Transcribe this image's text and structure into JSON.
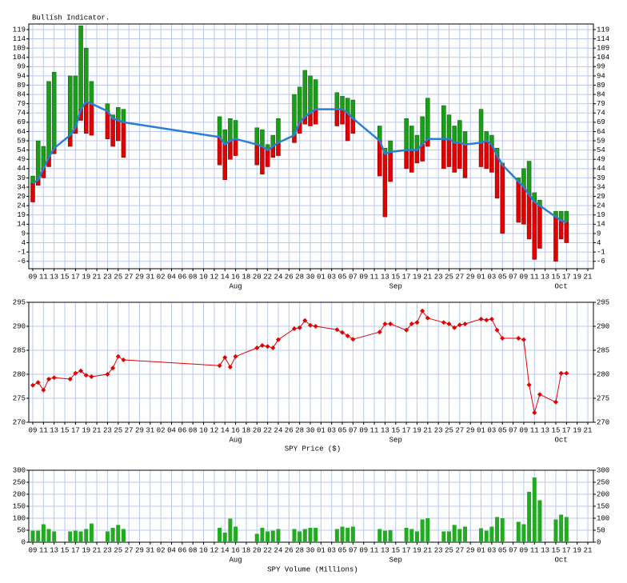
{
  "chart_data": [
    {
      "type": "indicator",
      "title": "Bullish Indicator.",
      "categories": [
        "09",
        null,
        "11",
        null,
        "13",
        null,
        "15",
        null,
        "17",
        null,
        "19",
        null,
        "21",
        null,
        "23",
        null,
        "25",
        null,
        "27",
        null,
        "29",
        null,
        "31",
        null,
        "02",
        null,
        "04",
        null,
        "06",
        null,
        "08",
        null,
        "10",
        null,
        "12",
        null,
        "14",
        null,
        "16",
        null,
        "18",
        null,
        "20",
        null,
        "22",
        null,
        "24",
        null,
        "26",
        null,
        "28",
        null,
        "30",
        null,
        "01",
        null,
        "03",
        null,
        "05",
        null,
        "07",
        null,
        "09",
        null,
        "11",
        null,
        "13",
        null,
        "15",
        null,
        "17",
        null,
        "19",
        null,
        "21",
        null,
        "23",
        null,
        "25",
        null,
        "27",
        null,
        "29",
        null,
        "01",
        null,
        "03",
        null,
        "05",
        null,
        "07",
        null,
        "09",
        null,
        "11",
        null,
        "13",
        null,
        "15",
        null,
        "17",
        null,
        "19",
        null,
        "21"
      ],
      "months": [
        null,
        null,
        null,
        null,
        null,
        null,
        null,
        null,
        null,
        null,
        null,
        null,
        null,
        null,
        null,
        null,
        null,
        null,
        null,
        null,
        null,
        null,
        null,
        null,
        null,
        null,
        null,
        null,
        null,
        null,
        null,
        null,
        null,
        null,
        null,
        null,
        null,
        null,
        "Aug",
        null,
        null,
        null,
        null,
        null,
        null,
        null,
        null,
        null,
        null,
        null,
        null,
        null,
        null,
        null,
        null,
        null,
        null,
        null,
        null,
        null,
        null,
        null,
        null,
        null,
        null,
        null,
        null,
        null,
        "Sep",
        null,
        null,
        null,
        null,
        null,
        null,
        null,
        null,
        null,
        null,
        null,
        null,
        null,
        null,
        null,
        null,
        null,
        null,
        null,
        null,
        null,
        null,
        null,
        null,
        null,
        null,
        null,
        null,
        null,
        null,
        "Oct",
        null,
        null,
        null,
        null,
        null
      ],
      "upper": [
        40,
        59,
        56,
        91,
        96,
        null,
        null,
        94,
        94,
        121,
        109,
        91,
        null,
        null,
        79,
        73,
        77,
        76,
        null,
        null,
        null,
        null,
        null,
        null,
        null,
        null,
        null,
        null,
        null,
        null,
        null,
        null,
        null,
        null,
        null,
        72,
        65,
        71,
        70,
        null,
        null,
        null,
        66,
        65,
        57,
        62,
        71,
        null,
        null,
        84,
        88,
        97,
        94,
        92,
        null,
        null,
        null,
        85,
        83,
        82,
        81,
        null,
        null,
        null,
        null,
        67,
        55,
        59,
        null,
        null,
        71,
        67,
        62,
        72,
        82,
        null,
        null,
        78,
        73,
        67,
        70,
        64,
        null,
        null,
        76,
        64,
        62,
        55,
        47,
        null,
        null,
        39,
        44,
        48,
        31,
        27,
        null,
        null,
        21,
        21,
        21,
        null,
        null,
        null,
        null
      ],
      "lower": [
        26,
        35,
        39,
        45,
        52,
        null,
        null,
        56,
        63,
        70,
        63,
        62,
        null,
        null,
        60,
        56,
        59,
        50,
        null,
        null,
        null,
        null,
        null,
        null,
        null,
        null,
        null,
        null,
        null,
        null,
        null,
        null,
        null,
        null,
        null,
        46,
        38,
        49,
        51,
        null,
        null,
        null,
        46,
        41,
        45,
        50,
        51,
        null,
        null,
        58,
        63,
        68,
        67,
        68,
        null,
        null,
        null,
        67,
        68,
        59,
        63,
        null,
        null,
        null,
        null,
        40,
        18,
        37,
        null,
        null,
        44,
        42,
        47,
        48,
        56,
        null,
        null,
        44,
        45,
        42,
        44,
        39,
        null,
        null,
        45,
        44,
        42,
        28,
        9,
        null,
        null,
        15,
        14,
        6,
        -5,
        1,
        null,
        null,
        -6,
        6,
        4,
        null,
        null,
        null,
        null
      ],
      "line": [
        36,
        38,
        44,
        50,
        55,
        null,
        null,
        62,
        66,
        76,
        80,
        79,
        null,
        null,
        75,
        71,
        70,
        69,
        null,
        null,
        null,
        null,
        null,
        null,
        null,
        null,
        null,
        null,
        null,
        null,
        null,
        null,
        null,
        null,
        null,
        61,
        57,
        59,
        60,
        null,
        null,
        null,
        57,
        56,
        54,
        56,
        58,
        null,
        null,
        62,
        69,
        72,
        74,
        76,
        null,
        null,
        null,
        76,
        76,
        74,
        71,
        null,
        null,
        null,
        null,
        59,
        52,
        53,
        null,
        null,
        54,
        54,
        54,
        57,
        60,
        null,
        null,
        60,
        60,
        58,
        58,
        57,
        null,
        null,
        58,
        59,
        57,
        51,
        46,
        null,
        null,
        37,
        34,
        30,
        26,
        24,
        null,
        null,
        18,
        16,
        15,
        null,
        null,
        null,
        null
      ],
      "upper_color": "#1a9e1a",
      "lower_color": "#e00000",
      "line_color": "#2a7fd4",
      "ylim": [
        -10,
        122
      ],
      "yticks": [
        -6,
        -1,
        4,
        9,
        14,
        19,
        24,
        29,
        34,
        39,
        44,
        49,
        54,
        59,
        64,
        69,
        74,
        79,
        84,
        89,
        94,
        99,
        104,
        109,
        114,
        119
      ],
      "grid": true
    },
    {
      "type": "line",
      "title": "SPY Price ($)",
      "categories": [
        "09",
        null,
        "11",
        null,
        "13",
        null,
        "15",
        null,
        "17",
        null,
        "19",
        null,
        "21",
        null,
        "23",
        null,
        "25",
        null,
        "27",
        null,
        "29",
        null,
        "31",
        null,
        "02",
        null,
        "04",
        null,
        "06",
        null,
        "08",
        null,
        "10",
        null,
        "12",
        null,
        "14",
        null,
        "16",
        null,
        "18",
        null,
        "20",
        null,
        "22",
        null,
        "24",
        null,
        "26",
        null,
        "28",
        null,
        "30",
        null,
        "01",
        null,
        "03",
        null,
        "05",
        null,
        "07",
        null,
        "09",
        null,
        "11",
        null,
        "13",
        null,
        "15",
        null,
        "17",
        null,
        "19",
        null,
        "21",
        null,
        "23",
        null,
        "25",
        null,
        "27",
        null,
        "29",
        null,
        "01",
        null,
        "03",
        null,
        "05",
        null,
        "07",
        null,
        "09",
        null,
        "11",
        null,
        "13",
        null,
        "15",
        null,
        "17",
        null,
        "19",
        null,
        "21"
      ],
      "months": [
        null,
        null,
        null,
        null,
        null,
        null,
        null,
        null,
        null,
        null,
        null,
        null,
        null,
        null,
        null,
        null,
        null,
        null,
        null,
        null,
        null,
        null,
        null,
        null,
        null,
        null,
        null,
        null,
        null,
        null,
        null,
        null,
        null,
        null,
        null,
        null,
        null,
        null,
        "Aug",
        null,
        null,
        null,
        null,
        null,
        null,
        null,
        null,
        null,
        null,
        null,
        null,
        null,
        null,
        null,
        null,
        null,
        null,
        null,
        null,
        null,
        null,
        null,
        null,
        null,
        null,
        null,
        null,
        null,
        "Sep",
        null,
        null,
        null,
        null,
        null,
        null,
        null,
        null,
        null,
        null,
        null,
        null,
        null,
        null,
        null,
        null,
        null,
        null,
        null,
        null,
        null,
        null,
        null,
        null,
        null,
        null,
        null,
        null,
        null,
        null,
        "Oct",
        null,
        null,
        null,
        null,
        null
      ],
      "values": [
        277.7,
        278.3,
        276.7,
        279.0,
        279.3,
        null,
        null,
        279.0,
        280.2,
        280.7,
        279.8,
        279.5,
        null,
        null,
        280.0,
        281.3,
        283.7,
        283.0,
        null,
        null,
        null,
        null,
        null,
        null,
        null,
        null,
        null,
        null,
        null,
        null,
        null,
        null,
        null,
        null,
        null,
        281.8,
        283.5,
        281.5,
        283.7,
        null,
        null,
        null,
        285.5,
        286.0,
        285.8,
        285.5,
        287.2,
        null,
        null,
        289.5,
        289.7,
        291.2,
        290.2,
        290.0,
        null,
        null,
        null,
        289.3,
        288.7,
        288.0,
        287.3,
        null,
        null,
        null,
        null,
        288.8,
        290.5,
        290.5,
        null,
        null,
        289.2,
        290.5,
        290.8,
        293.2,
        291.7,
        null,
        null,
        290.8,
        290.5,
        289.7,
        290.3,
        290.5,
        null,
        null,
        291.5,
        291.3,
        291.5,
        289.2,
        287.5,
        null,
        null,
        287.5,
        287.2,
        277.8,
        272.0,
        275.8,
        null,
        null,
        274.2,
        280.2,
        280.2,
        null,
        null,
        null,
        null
      ],
      "color": "#e00000",
      "ylim": [
        270,
        295
      ],
      "yticks": [
        270,
        275,
        280,
        285,
        290,
        295
      ],
      "grid": true
    },
    {
      "type": "bar",
      "title": "SPY Volume (Millions)",
      "categories": [
        "09",
        null,
        "11",
        null,
        "13",
        null,
        "15",
        null,
        "17",
        null,
        "19",
        null,
        "21",
        null,
        "23",
        null,
        "25",
        null,
        "27",
        null,
        "29",
        null,
        "31",
        null,
        "02",
        null,
        "04",
        null,
        "06",
        null,
        "08",
        null,
        "10",
        null,
        "12",
        null,
        "14",
        null,
        "16",
        null,
        "18",
        null,
        "20",
        null,
        "22",
        null,
        "24",
        null,
        "26",
        null,
        "28",
        null,
        "30",
        null,
        "01",
        null,
        "03",
        null,
        "05",
        null,
        "07",
        null,
        "09",
        null,
        "11",
        null,
        "13",
        null,
        "15",
        null,
        "17",
        null,
        "19",
        null,
        "21",
        null,
        "23",
        null,
        "25",
        null,
        "27",
        null,
        "29",
        null,
        "01",
        null,
        "03",
        null,
        "05",
        null,
        "07",
        null,
        "09",
        null,
        "11",
        null,
        "13",
        null,
        "15",
        null,
        "17",
        null,
        "19",
        null,
        "21"
      ],
      "months": [
        null,
        null,
        null,
        null,
        null,
        null,
        null,
        null,
        null,
        null,
        null,
        null,
        null,
        null,
        null,
        null,
        null,
        null,
        null,
        null,
        null,
        null,
        null,
        null,
        null,
        null,
        null,
        null,
        null,
        null,
        null,
        null,
        null,
        null,
        null,
        null,
        null,
        null,
        "Aug",
        null,
        null,
        null,
        null,
        null,
        null,
        null,
        null,
        null,
        null,
        null,
        null,
        null,
        null,
        null,
        null,
        null,
        null,
        null,
        null,
        null,
        null,
        null,
        null,
        null,
        null,
        null,
        null,
        null,
        "Sep",
        null,
        null,
        null,
        null,
        null,
        null,
        null,
        null,
        null,
        null,
        null,
        null,
        null,
        null,
        null,
        null,
        null,
        null,
        null,
        null,
        null,
        null,
        null,
        null,
        null,
        null,
        null,
        null,
        null,
        null,
        "Oct",
        null,
        null,
        null,
        null,
        null
      ],
      "values": [
        48,
        48,
        75,
        55,
        45,
        null,
        null,
        45,
        48,
        45,
        55,
        78,
        null,
        null,
        45,
        60,
        72,
        55,
        null,
        null,
        null,
        null,
        null,
        null,
        null,
        null,
        null,
        null,
        null,
        null,
        null,
        null,
        null,
        null,
        null,
        60,
        40,
        98,
        65,
        null,
        null,
        null,
        35,
        60,
        45,
        48,
        55,
        null,
        null,
        55,
        45,
        55,
        60,
        60,
        null,
        null,
        null,
        55,
        65,
        60,
        65,
        null,
        null,
        null,
        null,
        55,
        48,
        50,
        null,
        null,
        60,
        55,
        45,
        95,
        100,
        null,
        null,
        45,
        45,
        72,
        55,
        65,
        null,
        null,
        58,
        48,
        65,
        105,
        100,
        null,
        null,
        85,
        75,
        210,
        270,
        175,
        null,
        null,
        95,
        115,
        105,
        null,
        null,
        null,
        null
      ],
      "color": "#22aa22",
      "ylim": [
        0,
        300
      ],
      "yticks": [
        0,
        50,
        100,
        150,
        200,
        250,
        300
      ],
      "grid": true
    }
  ]
}
